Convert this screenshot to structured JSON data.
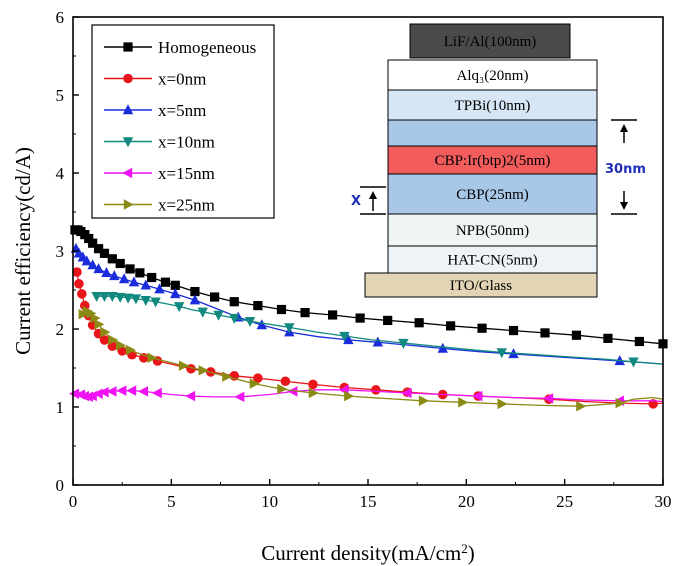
{
  "chart_data": {
    "type": "line",
    "xlabel": "Current density(mA/cm²)",
    "ylabel": "Current efficiency(cd/A)",
    "xlim": [
      0,
      30
    ],
    "ylim": [
      0,
      6
    ],
    "x_ticks": [
      "0",
      "5",
      "10",
      "15",
      "20",
      "25",
      "30"
    ],
    "y_ticks": [
      "0",
      "1",
      "2",
      "3",
      "4",
      "5",
      "6"
    ],
    "grid": false,
    "legend_position": "top-left",
    "series": [
      {
        "name": "Homogeneous",
        "color": "#000000",
        "marker": "square",
        "x": [
          0.1,
          0.25,
          0.4,
          0.6,
          0.8,
          1.0,
          1.3,
          1.6,
          2.0,
          2.4,
          2.9,
          3.4,
          4.0,
          4.7,
          5.2,
          6.2,
          7.2,
          8.2,
          9.4,
          10.6,
          11.8,
          13.2,
          14.6,
          16.0,
          17.6,
          19.2,
          20.8,
          22.4,
          24.0,
          25.6,
          27.2,
          28.8,
          30.0
        ],
        "y": [
          3.27,
          3.27,
          3.25,
          3.21,
          3.16,
          3.1,
          3.03,
          2.97,
          2.9,
          2.84,
          2.77,
          2.72,
          2.66,
          2.6,
          2.56,
          2.48,
          2.41,
          2.35,
          2.3,
          2.25,
          2.21,
          2.18,
          2.14,
          2.11,
          2.08,
          2.04,
          2.01,
          1.98,
          1.95,
          1.92,
          1.88,
          1.84,
          1.81
        ],
        "marker_indices": [
          0,
          1,
          2,
          3,
          4,
          5,
          6,
          7,
          8,
          9,
          10,
          11,
          12,
          13,
          14,
          15,
          16,
          17,
          18,
          19,
          20,
          21,
          22,
          23,
          24,
          25,
          26,
          27,
          28,
          29,
          30,
          31,
          32
        ]
      },
      {
        "name": "x=0nm",
        "color": "#e8161b",
        "marker": "circle",
        "x": [
          0.2,
          0.3,
          0.45,
          0.6,
          0.8,
          1.0,
          1.3,
          1.6,
          2.0,
          2.5,
          3.0,
          3.6,
          4.3,
          5.0,
          6.0,
          7.0,
          8.2,
          9.4,
          10.8,
          12.2,
          13.8,
          15.4,
          17.0,
          18.8,
          20.6,
          22.4,
          24.2,
          26.0,
          27.8,
          29.5,
          30.0
        ],
        "y": [
          2.73,
          2.58,
          2.45,
          2.3,
          2.17,
          2.05,
          1.94,
          1.86,
          1.78,
          1.72,
          1.67,
          1.63,
          1.59,
          1.55,
          1.49,
          1.45,
          1.4,
          1.37,
          1.33,
          1.29,
          1.25,
          1.22,
          1.19,
          1.16,
          1.14,
          1.12,
          1.1,
          1.07,
          1.05,
          1.04,
          1.05
        ],
        "marker_indices": [
          0,
          1,
          2,
          3,
          4,
          5,
          6,
          7,
          8,
          9,
          10,
          11,
          12,
          14,
          15,
          16,
          17,
          18,
          19,
          20,
          21,
          22,
          23,
          24,
          26,
          29
        ]
      },
      {
        "name": "x=5nm",
        "color": "#1a2cdc",
        "marker": "triangle-up",
        "x": [
          0.15,
          0.3,
          0.5,
          0.7,
          1.0,
          1.3,
          1.7,
          2.1,
          2.6,
          3.1,
          3.7,
          4.4,
          5.2,
          6.2,
          7.2,
          8.4,
          9.6,
          11.0,
          12.5,
          14.0,
          15.5,
          17.2,
          18.8,
          20.6,
          22.4,
          24.2,
          26.0,
          27.8,
          29.0,
          30.0
        ],
        "y": [
          3.03,
          2.97,
          2.92,
          2.87,
          2.82,
          2.77,
          2.72,
          2.68,
          2.64,
          2.6,
          2.56,
          2.51,
          2.45,
          2.37,
          2.27,
          2.15,
          2.05,
          1.96,
          1.9,
          1.86,
          1.83,
          1.79,
          1.75,
          1.71,
          1.68,
          1.65,
          1.62,
          1.59,
          1.57,
          1.55
        ],
        "marker_indices": [
          0,
          1,
          2,
          3,
          4,
          5,
          6,
          7,
          8,
          9,
          10,
          11,
          12,
          13,
          15,
          16,
          17,
          19,
          20,
          22,
          24,
          27
        ]
      },
      {
        "name": "x=10nm",
        "color": "#12897f",
        "marker": "triangle-down",
        "x": [
          1.2,
          1.6,
          2.0,
          2.4,
          2.8,
          3.2,
          3.7,
          4.2,
          4.8,
          5.4,
          6.0,
          6.6,
          7.4,
          8.2,
          9.0,
          10.0,
          11.0,
          12.4,
          13.8,
          15.2,
          16.8,
          18.4,
          20.0,
          21.8,
          23.6,
          25.4,
          27.2,
          28.5,
          30.0
        ],
        "y": [
          2.42,
          2.42,
          2.42,
          2.41,
          2.4,
          2.39,
          2.37,
          2.35,
          2.32,
          2.29,
          2.25,
          2.22,
          2.18,
          2.14,
          2.1,
          2.06,
          2.02,
          1.96,
          1.91,
          1.86,
          1.82,
          1.78,
          1.74,
          1.7,
          1.67,
          1.64,
          1.61,
          1.58,
          1.55
        ],
        "marker_indices": [
          0,
          1,
          2,
          3,
          4,
          5,
          6,
          7,
          9,
          11,
          12,
          13,
          14,
          16,
          18,
          20,
          23,
          27
        ]
      },
      {
        "name": "x=15nm",
        "color": "#f012f2",
        "marker": "triangle-left",
        "x": [
          0.1,
          0.25,
          0.4,
          0.6,
          0.8,
          1.0,
          1.3,
          1.6,
          2.0,
          2.5,
          3.0,
          3.6,
          4.3,
          5.0,
          6.0,
          7.2,
          8.5,
          10.0,
          11.2,
          12.4,
          13.8,
          15.4,
          17.0,
          18.8,
          20.6,
          22.4,
          24.2,
          26.0,
          27.8,
          29.5,
          30.0
        ],
        "y": [
          1.17,
          1.18,
          1.16,
          1.14,
          1.13,
          1.14,
          1.17,
          1.19,
          1.2,
          1.21,
          1.21,
          1.2,
          1.18,
          1.16,
          1.14,
          1.13,
          1.13,
          1.16,
          1.2,
          1.22,
          1.22,
          1.2,
          1.18,
          1.16,
          1.14,
          1.12,
          1.11,
          1.09,
          1.08,
          1.08,
          1.07
        ],
        "marker_indices": [
          0,
          2,
          3,
          4,
          5,
          6,
          7,
          8,
          9,
          10,
          11,
          12,
          14,
          16,
          18,
          20,
          22,
          24,
          26,
          28
        ]
      },
      {
        "name": "x=25nm",
        "color": "#8a8a14",
        "marker": "triangle-right",
        "x": [
          0.5,
          0.7,
          0.9,
          1.1,
          1.3,
          1.6,
          2.0,
          2.4,
          2.9,
          3.4,
          4.0,
          4.8,
          5.6,
          6.6,
          7.8,
          9.2,
          10.6,
          12.2,
          14.0,
          15.8,
          17.8,
          19.8,
          21.8,
          23.8,
          25.8,
          27.8,
          28.5,
          29.5,
          30.0
        ],
        "y": [
          2.19,
          2.23,
          2.2,
          2.14,
          2.06,
          1.96,
          1.86,
          1.79,
          1.73,
          1.68,
          1.63,
          1.58,
          1.53,
          1.47,
          1.39,
          1.3,
          1.23,
          1.18,
          1.14,
          1.11,
          1.08,
          1.06,
          1.04,
          1.02,
          1.01,
          1.05,
          1.1,
          1.12,
          1.1
        ],
        "marker_indices": [
          0,
          1,
          2,
          3,
          4,
          5,
          6,
          7,
          8,
          10,
          12,
          13,
          14,
          15,
          16,
          17,
          18,
          20,
          21,
          22,
          24,
          25
        ]
      }
    ]
  },
  "inset": {
    "layers": [
      {
        "label": "LiF/Al(100nm)",
        "fill": "#4a4a4a",
        "text_color": "#ffffff"
      },
      {
        "label": "Alq₃(20nm)",
        "fill": "#ffffff",
        "text_color": "#000000"
      },
      {
        "label": "TPBi(10nm)",
        "fill": "#d6e6f4",
        "text_color": "#000000"
      },
      {
        "label": "",
        "fill": "#a9c8e8",
        "text_color": "#000000"
      },
      {
        "label": "CBP:Ir(btp)2(5nm)",
        "fill": "#f25c5c",
        "text_color": "#000000"
      },
      {
        "label": "CBP(25nm)",
        "fill": "#a9c8e8",
        "text_color": "#000000"
      },
      {
        "label": "NPB(50nm)",
        "fill": "#eef5f3",
        "text_color": "#000000"
      },
      {
        "label": "HAT-CN(5nm)",
        "fill": "#eef3f7",
        "text_color": "#000000"
      },
      {
        "label": "ITO/Glass",
        "fill": "#e2d4b4",
        "text_color": "#000000"
      }
    ],
    "thickness_label": "30nm",
    "x_label": "X"
  }
}
